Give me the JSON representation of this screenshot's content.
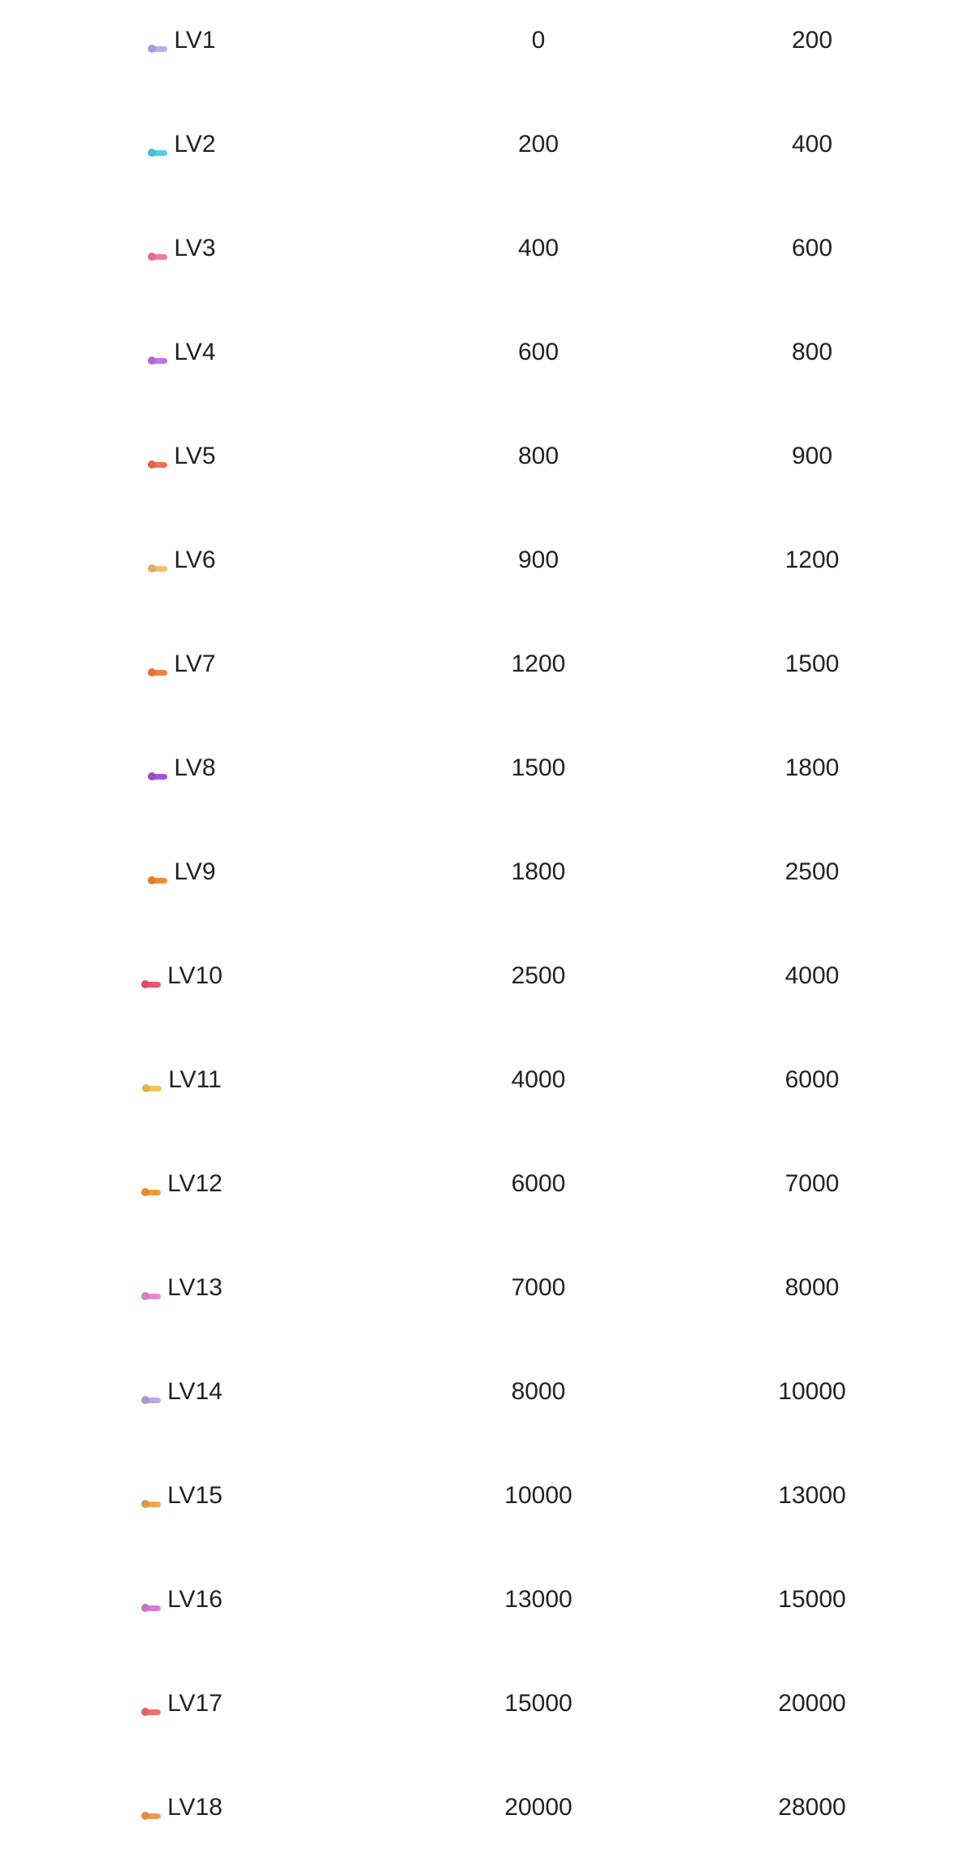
{
  "levels": [
    {
      "level": "LV1",
      "min": "0",
      "max": "200",
      "badge_color": "#a5a8f5",
      "icon": "level-badge-icon"
    },
    {
      "level": "LV2",
      "min": "200",
      "max": "400",
      "badge_color": "#3cc8e8",
      "icon": "level-badge-icon"
    },
    {
      "level": "LV3",
      "min": "400",
      "max": "600",
      "badge_color": "#f06a9a",
      "icon": "level-badge-icon"
    },
    {
      "level": "LV4",
      "min": "600",
      "max": "800",
      "badge_color": "#c060e0",
      "icon": "level-badge-icon"
    },
    {
      "level": "LV5",
      "min": "800",
      "max": "900",
      "badge_color": "#f06040",
      "icon": "level-badge-icon"
    },
    {
      "level": "LV6",
      "min": "900",
      "max": "1200",
      "badge_color": "#f5b860",
      "icon": "level-badge-icon"
    },
    {
      "level": "LV7",
      "min": "1200",
      "max": "1500",
      "badge_color": "#f07030",
      "icon": "level-badge-icon"
    },
    {
      "level": "LV8",
      "min": "1500",
      "max": "1800",
      "badge_color": "#a040d0",
      "icon": "level-badge-icon"
    },
    {
      "level": "LV9",
      "min": "1800",
      "max": "2500",
      "badge_color": "#f08020",
      "icon": "level-badge-icon"
    },
    {
      "level": "LV10",
      "min": "2500",
      "max": "4000",
      "badge_color": "#f04060",
      "icon": "level-badge-icon"
    },
    {
      "level": "LV11",
      "min": "4000",
      "max": "6000",
      "badge_color": "#f0c040",
      "icon": "level-badge-icon"
    },
    {
      "level": "LV12",
      "min": "6000",
      "max": "7000",
      "badge_color": "#f09020",
      "icon": "level-badge-icon"
    },
    {
      "level": "LV13",
      "min": "7000",
      "max": "8000",
      "badge_color": "#e080d0",
      "icon": "level-badge-icon"
    },
    {
      "level": "LV14",
      "min": "8000",
      "max": "10000",
      "badge_color": "#b0a0e0",
      "icon": "level-badge-icon"
    },
    {
      "level": "LV15",
      "min": "10000",
      "max": "13000",
      "badge_color": "#f0a030",
      "icon": "level-badge-icon"
    },
    {
      "level": "LV16",
      "min": "13000",
      "max": "15000",
      "badge_color": "#d070d0",
      "icon": "level-badge-icon"
    },
    {
      "level": "LV17",
      "min": "15000",
      "max": "20000",
      "badge_color": "#f06060",
      "icon": "level-badge-icon"
    },
    {
      "level": "LV18",
      "min": "20000",
      "max": "28000",
      "badge_color": "#f09040",
      "icon": "level-badge-icon"
    }
  ]
}
